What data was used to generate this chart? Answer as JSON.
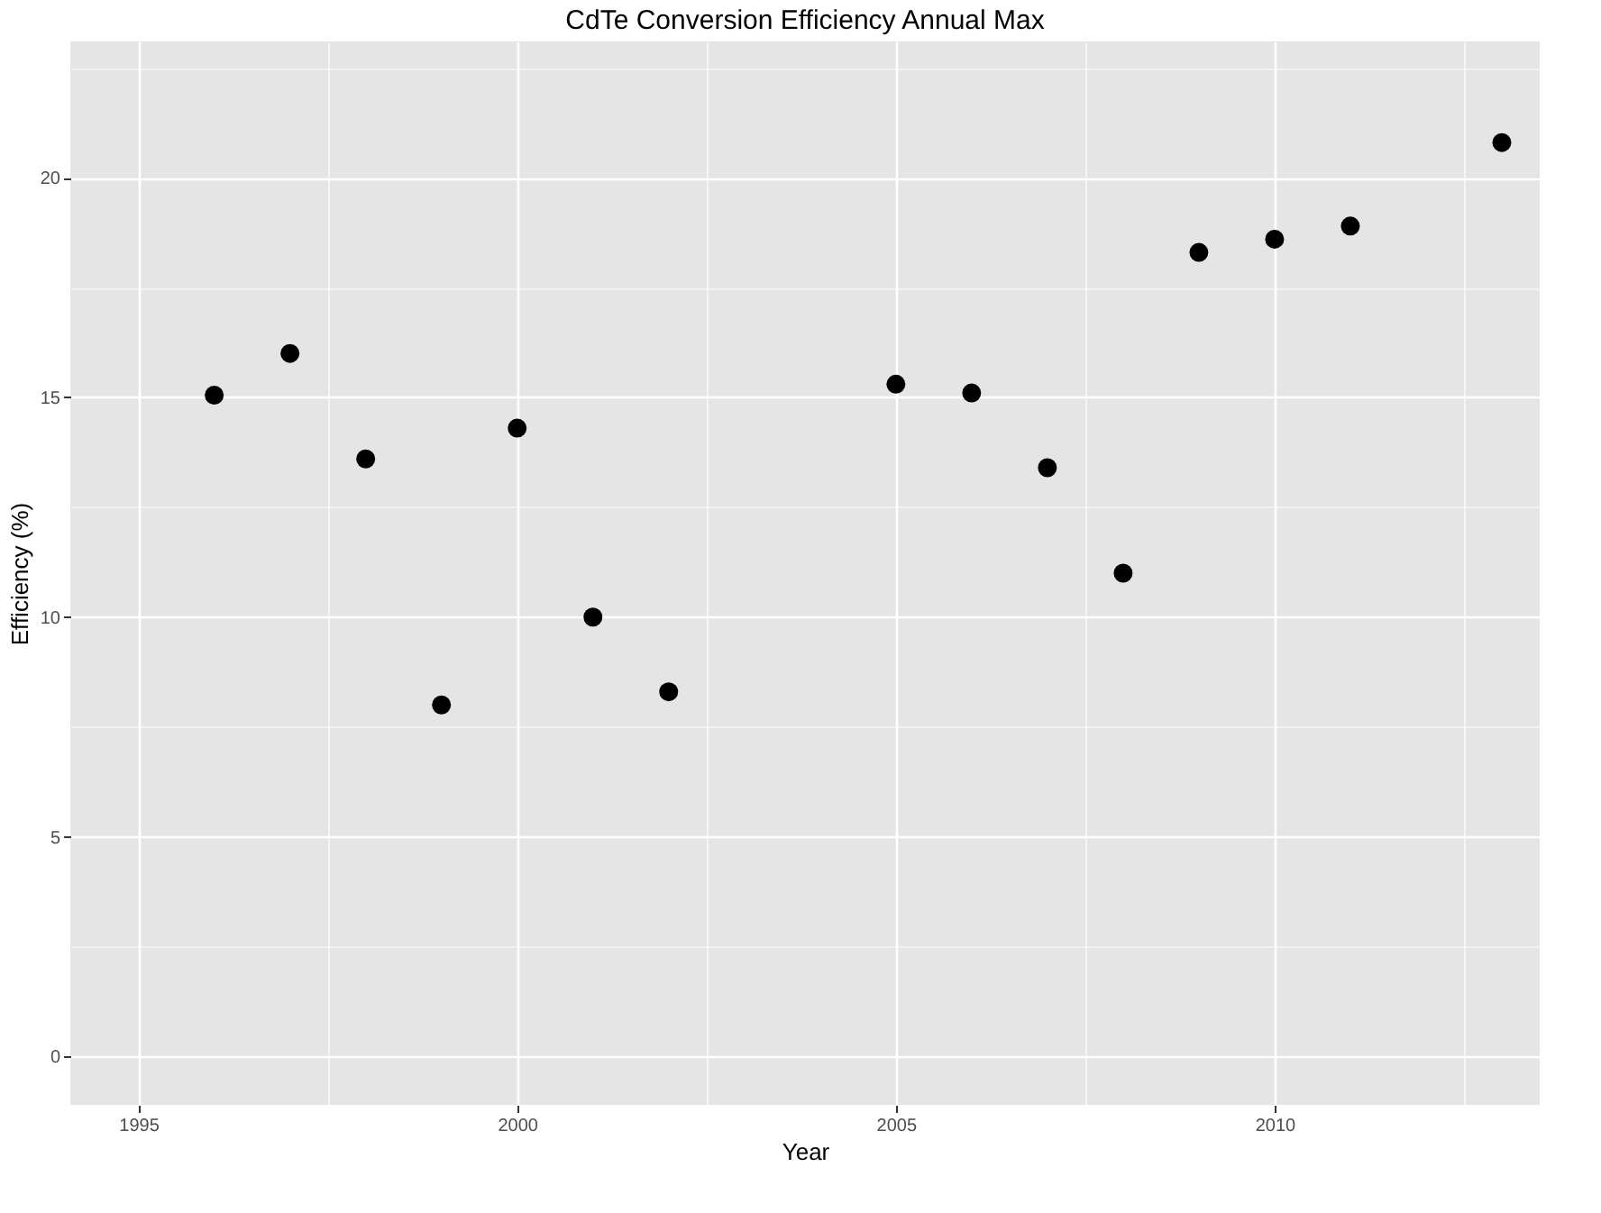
{
  "chart_data": {
    "type": "scatter",
    "title": "CdTe Conversion Efficiency Annual Max",
    "xlabel": "Year",
    "ylabel": "Efficiency (%)",
    "x": [
      1996,
      1997,
      1998,
      1999,
      2000,
      2001,
      2002,
      2005,
      2006,
      2007,
      2008,
      2009,
      2010,
      2011,
      2013
    ],
    "series": [
      {
        "color": "#000000",
        "values": [
          15.05,
          16.0,
          13.6,
          8.0,
          14.3,
          10.0,
          8.3,
          15.3,
          15.1,
          13.4,
          11.0,
          18.3,
          18.6,
          18.9,
          20.8
        ]
      }
    ],
    "xlim": [
      1994.1,
      2013.5
    ],
    "ylim": [
      -1.1,
      23.1
    ],
    "xticks": [
      1995,
      {
        "value": 1997.5,
        "label": null
      },
      2000,
      {
        "value": 2002.5,
        "label": null
      },
      2005,
      {
        "value": 2007.5,
        "label": null
      },
      2010,
      {
        "value": 2012.5,
        "label": null
      }
    ],
    "yticks": [
      0,
      {
        "value": 2.5,
        "label": null
      },
      5,
      {
        "value": 7.5,
        "label": null
      },
      10,
      {
        "value": 12.5,
        "label": null
      },
      15,
      {
        "value": 17.5,
        "label": null
      },
      20,
      {
        "value": 22.5,
        "label": null
      }
    ],
    "grid": true,
    "marker": "circle"
  }
}
